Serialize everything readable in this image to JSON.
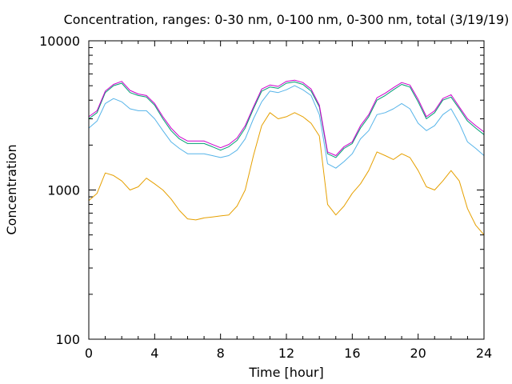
{
  "chart_data": {
    "type": "line",
    "title": "Concentration, ranges: 0-30 nm, 0-100 nm, 0-300 nm, total (3/19/19)",
    "xlabel": "Time [hour]",
    "ylabel": "Concentration",
    "xlim": [
      0,
      24
    ],
    "ylim": [
      100,
      10000
    ],
    "yscale": "log",
    "grid": false,
    "legend": "none",
    "x_ticks": [
      "0",
      "4",
      "8",
      "12",
      "16",
      "20",
      "24"
    ],
    "y_ticks": [
      "100",
      "1000",
      "10000"
    ],
    "x_tick_values": [
      0,
      4,
      8,
      12,
      16,
      20,
      24
    ],
    "y_tick_values": [
      100,
      1000,
      10000
    ],
    "x": [
      0,
      0.5,
      1,
      1.5,
      2,
      2.5,
      3,
      3.5,
      4,
      4.5,
      5,
      5.5,
      6,
      6.5,
      7,
      7.5,
      8,
      8.5,
      9,
      9.5,
      10,
      10.5,
      11,
      11.5,
      12,
      12.5,
      13,
      13.5,
      14,
      14.5,
      15,
      15.5,
      16,
      16.5,
      17,
      17.5,
      18,
      18.5,
      19,
      19.5,
      20,
      20.5,
      21,
      21.5,
      22,
      22.5,
      23,
      23.5,
      24
    ],
    "series": [
      {
        "color": "#e6a000",
        "values": [
          850,
          950,
          1300,
          1250,
          1150,
          1000,
          1050,
          1200,
          1100,
          1000,
          870,
          730,
          640,
          630,
          650,
          660,
          670,
          680,
          780,
          1000,
          1700,
          2700,
          3300,
          3000,
          3100,
          3300,
          3100,
          2800,
          2300,
          800,
          680,
          780,
          950,
          1100,
          1350,
          1800,
          1700,
          1600,
          1750,
          1650,
          1350,
          1050,
          1000,
          1150,
          1350,
          1150,
          750,
          580,
          500
        ]
      },
      {
        "color": "#56b4e9",
        "values": [
          2600,
          2900,
          3800,
          4100,
          3900,
          3500,
          3400,
          3400,
          3000,
          2500,
          2100,
          1900,
          1750,
          1750,
          1750,
          1700,
          1650,
          1700,
          1850,
          2200,
          3000,
          3900,
          4600,
          4500,
          4700,
          5000,
          4700,
          4300,
          3200,
          1500,
          1400,
          1550,
          1750,
          2200,
          2500,
          3200,
          3300,
          3500,
          3800,
          3500,
          2800,
          2500,
          2700,
          3200,
          3500,
          2800,
          2100,
          1900,
          1700
        ]
      },
      {
        "color": "#009e73",
        "values": [
          3000,
          3300,
          4500,
          5000,
          5200,
          4500,
          4300,
          4200,
          3700,
          3000,
          2500,
          2200,
          2050,
          2050,
          2050,
          1950,
          1850,
          1950,
          2150,
          2600,
          3500,
          4600,
          4900,
          4800,
          5200,
          5300,
          5100,
          4600,
          3600,
          1750,
          1650,
          1900,
          2050,
          2600,
          3100,
          4000,
          4300,
          4700,
          5100,
          4900,
          3900,
          3000,
          3300,
          4000,
          4200,
          3500,
          2900,
          2600,
          2350
        ]
      },
      {
        "color": "#cc00cc",
        "values": [
          3100,
          3400,
          4600,
          5100,
          5350,
          4650,
          4400,
          4300,
          3800,
          3100,
          2600,
          2280,
          2130,
          2130,
          2130,
          2020,
          1920,
          2020,
          2230,
          2700,
          3600,
          4750,
          5050,
          4950,
          5350,
          5450,
          5250,
          4750,
          3700,
          1800,
          1700,
          1950,
          2100,
          2700,
          3200,
          4150,
          4450,
          4850,
          5250,
          5050,
          4050,
          3100,
          3400,
          4100,
          4350,
          3600,
          3000,
          2700,
          2450
        ]
      }
    ]
  }
}
